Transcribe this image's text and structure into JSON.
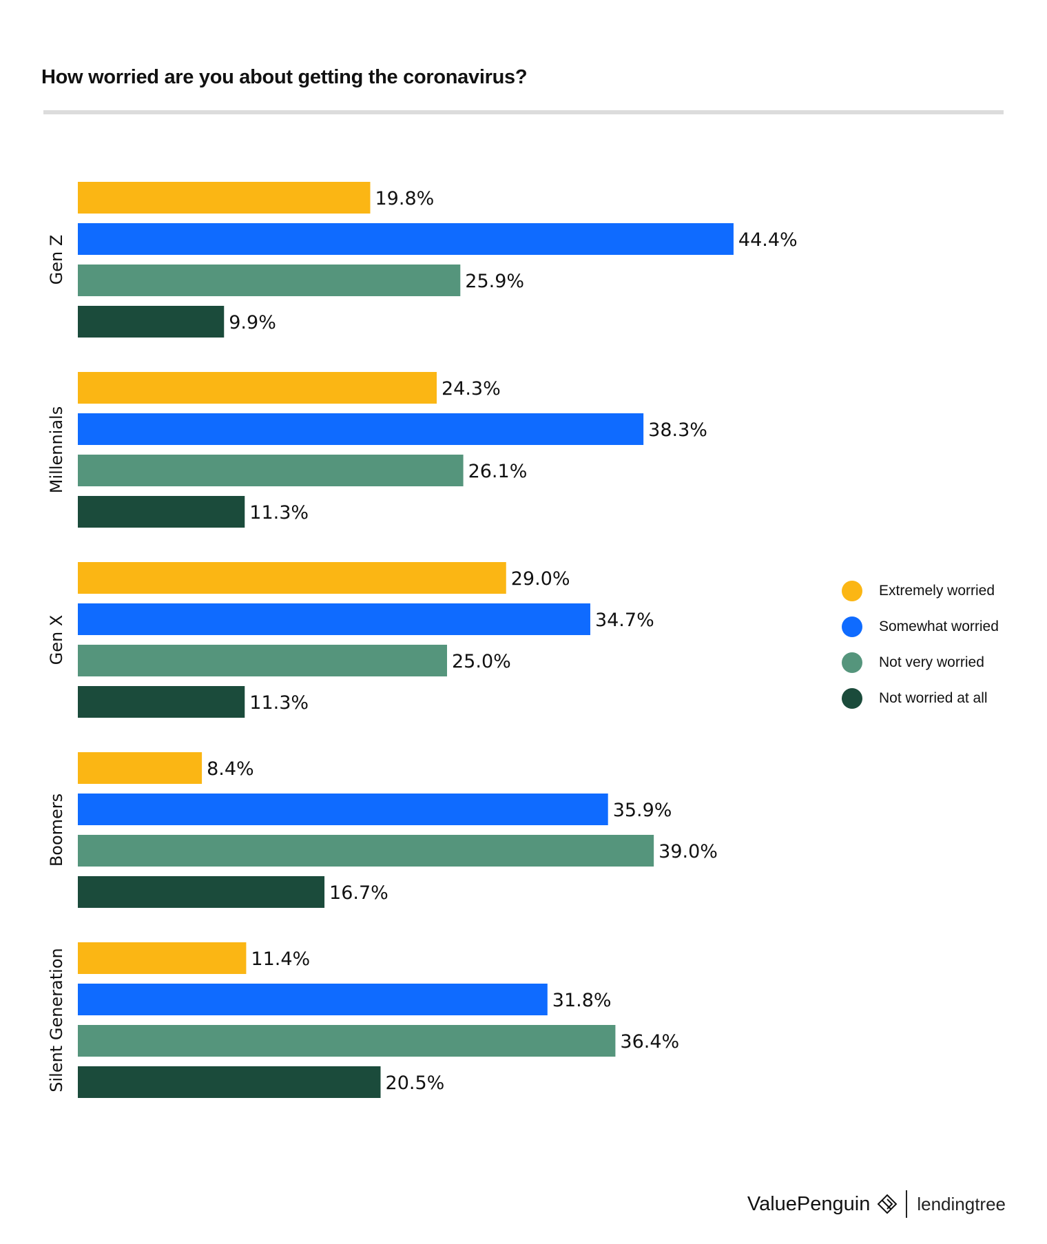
{
  "brand": {
    "valuepenguin": "ValuePenguin",
    "valuepenguin_icon": "valuepenguin-logo-icon",
    "lendingtree": "lendingtree"
  },
  "chart_data": {
    "type": "bar",
    "orientation": "horizontal",
    "title": "How worried are you about getting the coronavirus?",
    "categories": [
      "Gen Z",
      "Millennials",
      "Gen X",
      "Boomers",
      "Silent Generation"
    ],
    "series": [
      {
        "name": "Extremely worried",
        "color": "#fbb614",
        "values": [
          19.8,
          24.3,
          29.0,
          8.4,
          11.4
        ],
        "labels": [
          "19.8%",
          "24.3%",
          "29.0%",
          "8.4%",
          "11.4%"
        ]
      },
      {
        "name": "Somewhat worried",
        "color": "#0f6bff",
        "values": [
          44.4,
          38.3,
          34.7,
          35.9,
          31.8
        ],
        "labels": [
          "44.4%",
          "38.3%",
          "34.7%",
          "35.9%",
          "31.8%"
        ]
      },
      {
        "name": "Not very worried",
        "color": "#55957c",
        "values": [
          25.9,
          26.1,
          25.0,
          39.0,
          36.4
        ],
        "labels": [
          "25.9%",
          "26.1%",
          "25.0%",
          "39.0%",
          "36.4%"
        ]
      },
      {
        "name": "Not worried at all",
        "color": "#1b4b3b",
        "values": [
          9.9,
          11.3,
          11.3,
          16.7,
          20.5
        ],
        "labels": [
          "9.9%",
          "11.3%",
          "11.3%",
          "16.7%",
          "20.5%"
        ]
      }
    ],
    "value_unit": "%",
    "xlim": [
      0,
      50
    ],
    "grid": false,
    "legend_position": "right"
  }
}
